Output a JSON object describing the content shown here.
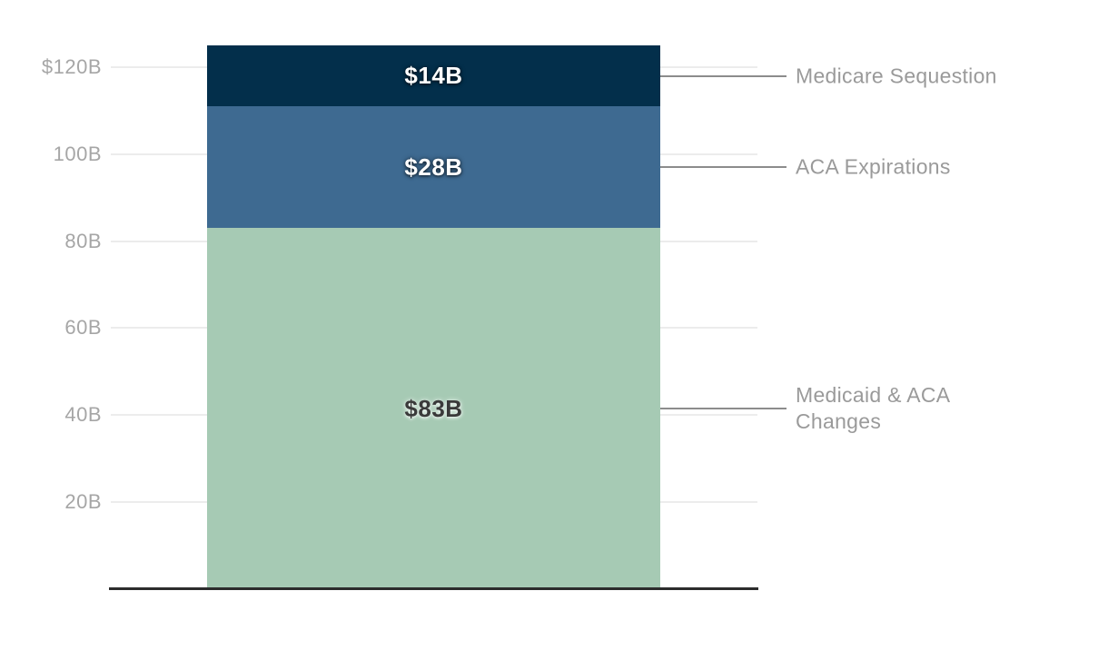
{
  "chart_data": {
    "type": "bar",
    "stacked": true,
    "title": "",
    "xlabel": "",
    "ylabel": "",
    "stack_order": "bottom-to-top",
    "series": [
      {
        "name": "Medicaid & ACA Changes",
        "values": [
          83
        ],
        "bar_label": "$83B",
        "color": "#A6CAB4",
        "label_color": "#3A3A3A",
        "label_glow": "light"
      },
      {
        "name": "ACA Expirations",
        "values": [
          28
        ],
        "bar_label": "$28B",
        "color": "#3E6A91",
        "label_color": "#FFFFFF",
        "label_glow": "dark"
      },
      {
        "name": "Medicare Sequestion",
        "values": [
          14
        ],
        "bar_label": "$14B",
        "color": "#032F4B",
        "label_color": "#FFFFFF",
        "label_glow": "dark"
      }
    ],
    "ylim": [
      0,
      125
    ],
    "yticks": [
      {
        "value": 20,
        "label": "20B"
      },
      {
        "value": 40,
        "label": "40B"
      },
      {
        "value": 60,
        "label": "60B"
      },
      {
        "value": 80,
        "label": "80B"
      },
      {
        "value": 100,
        "label": "100B"
      },
      {
        "value": 120,
        "label": "$120B"
      }
    ],
    "grid": true,
    "legend_position": "right-leader-annotations"
  },
  "colors": {
    "background": "#FFFFFF",
    "gridline": "#ECECEC",
    "leader_line": "#8C8C8C",
    "axis_line": "#2C2C2C",
    "tick_label": "#A6A6A6",
    "annotation_label": "#9A9A9A"
  }
}
